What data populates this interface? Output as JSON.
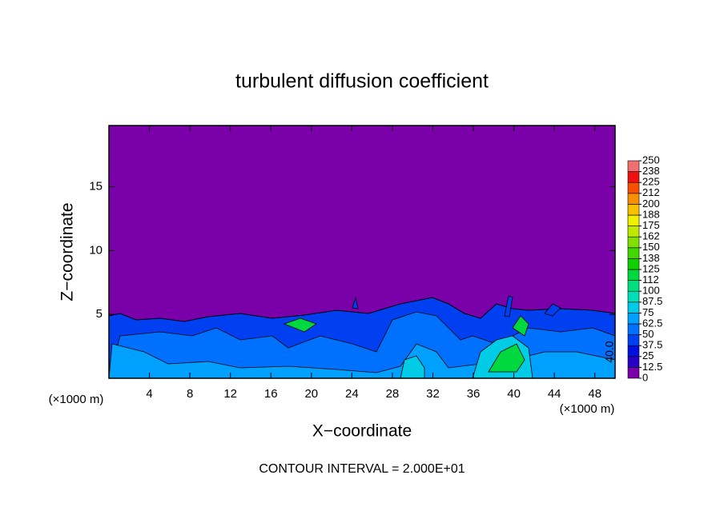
{
  "chart_data": {
    "type": "contour",
    "title": "turbulent diffusion coefficient",
    "xlabel": "X−coordinate",
    "ylabel": "Z−coordinate",
    "x_unit_left": "(×1000 m)",
    "x_unit_right": "(×1000 m)",
    "footer": "CONTOUR INTERVAL = 2.000E+01",
    "contour_label": "40.0",
    "background_color": "#7a00aa",
    "xlim": [
      0,
      50
    ],
    "xticks": [
      4,
      8,
      12,
      16,
      20,
      24,
      28,
      32,
      36,
      40,
      44,
      48
    ],
    "ylim": [
      0,
      19.8
    ],
    "yticks": [
      5,
      10,
      15
    ],
    "levels": [
      0,
      12.5,
      25,
      37.5,
      50,
      62.5,
      75,
      87.5,
      100,
      {
        "value": 112.5,
        "label": "112"
      },
      125,
      {
        "value": 137.5,
        "label": "138"
      },
      150,
      {
        "value": 162.5,
        "label": "162"
      },
      175,
      {
        "value": 187.5,
        "label": "188"
      },
      200,
      {
        "value": 212.5,
        "label": "212"
      },
      225,
      {
        "value": 237.5,
        "label": "238"
      },
      250
    ],
    "level_colors": [
      "#7a00aa",
      "#2a00c8",
      "#0010e0",
      "#0040f0",
      "#0070ff",
      "#00a0ff",
      "#00cce8",
      "#00e0b8",
      "#00e080",
      "#00d840",
      "#10d000",
      "#40d800",
      "#80e000",
      "#c0e800",
      "#f0f000",
      "#f8c000",
      "#f89000",
      "#f85000",
      "#f01010",
      "#f07070"
    ]
  }
}
